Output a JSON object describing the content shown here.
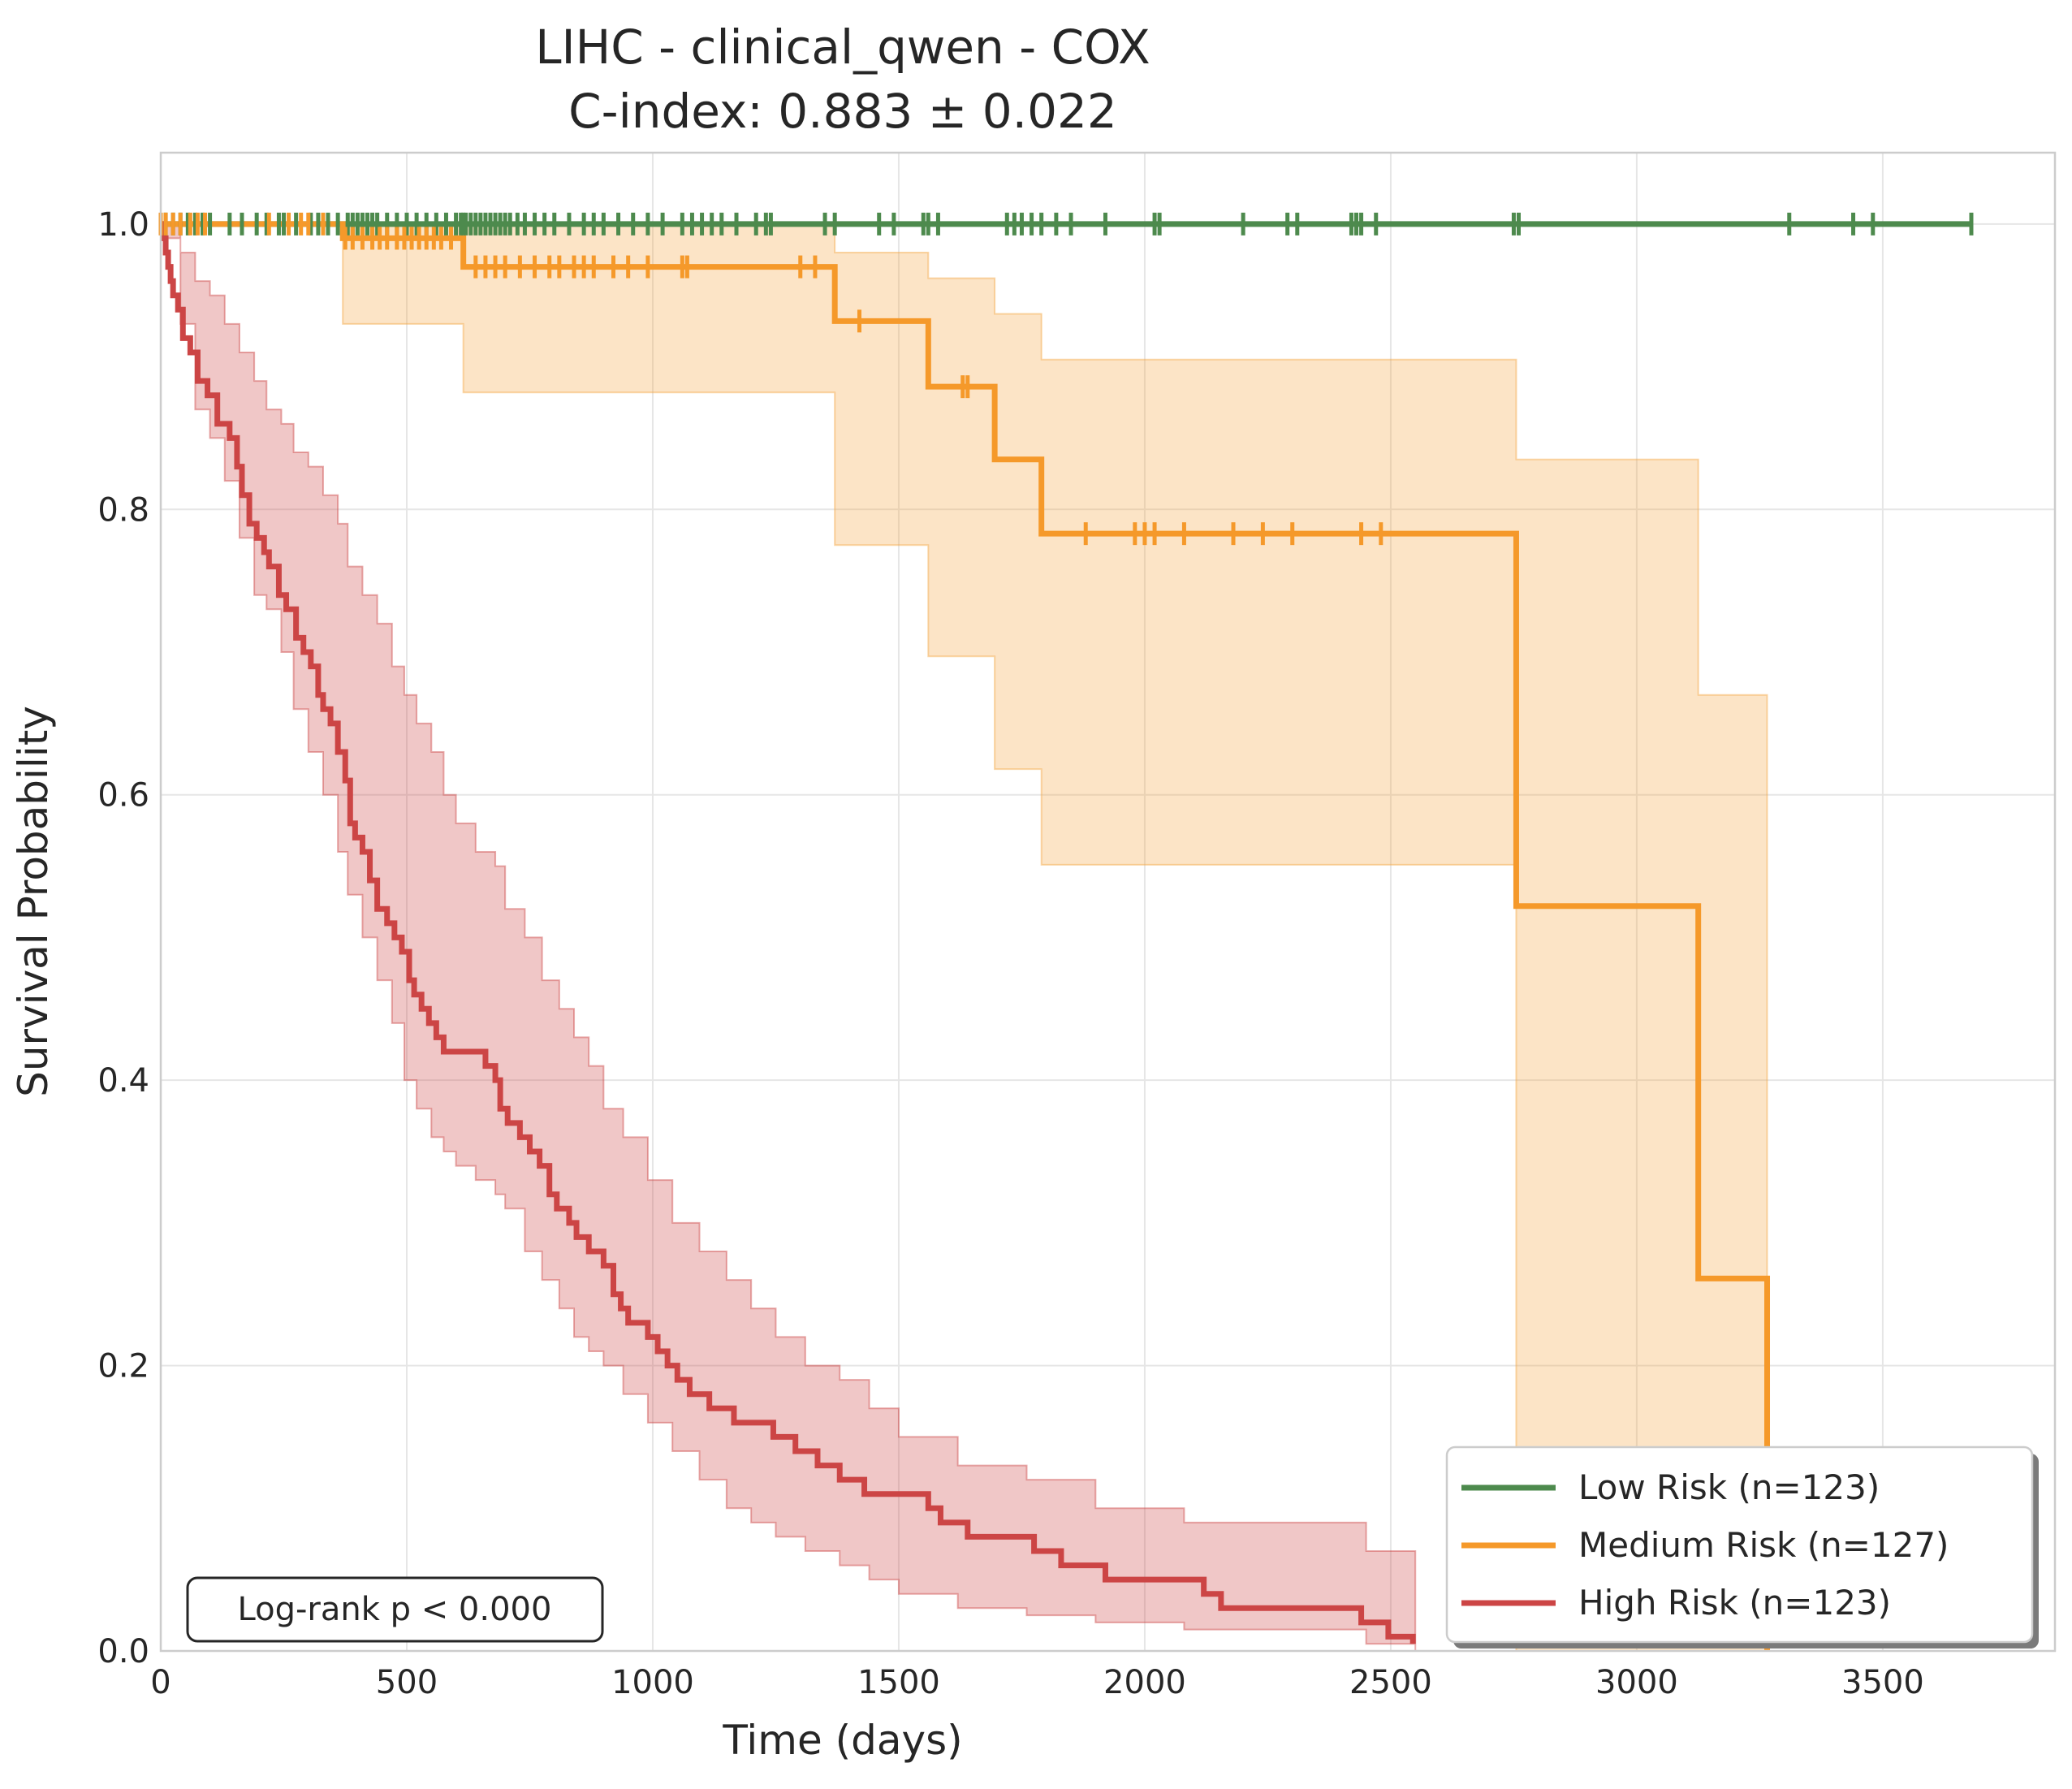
{
  "chart_data": {
    "type": "line",
    "title": "LIHC - clinical_qwen - COX",
    "subtitle": "C-index: 0.883 ± 0.022",
    "xlabel": "Time (days)",
    "ylabel": "Survival Probability",
    "xlim": [
      0,
      3850
    ],
    "ylim": [
      0,
      1.05
    ],
    "xticks": [
      0,
      500,
      1000,
      1500,
      2000,
      2500,
      3000,
      3500
    ],
    "xtick_labels": [
      "0",
      "500",
      "1000",
      "1500",
      "2000",
      "2500",
      "3000",
      "3500"
    ],
    "yticks": [
      0.0,
      0.2,
      0.4,
      0.6,
      0.8,
      1.0
    ],
    "ytick_labels": [
      "0.0",
      "0.2",
      "0.4",
      "0.6",
      "0.8",
      "1.0"
    ],
    "grid": true,
    "legend_position": "lower-right",
    "annotation": "Log-rank p < 0.000",
    "series": [
      {
        "name": "Low Risk (n=123)",
        "color": "#4d8a4d",
        "fill_color": "#4d8a4d",
        "steps": [
          [
            0,
            1.0
          ],
          [
            3680,
            1.0
          ]
        ],
        "ci_upper": [],
        "ci_lower": [],
        "censor": [
          10,
          25,
          40,
          55,
          70,
          85,
          100,
          140,
          165,
          195,
          215,
          240,
          250,
          275,
          305,
          320,
          340,
          360,
          380,
          390,
          400,
          410,
          420,
          430,
          440,
          460,
          480,
          500,
          520,
          540,
          560,
          580,
          600,
          610,
          615,
          620,
          630,
          640,
          650,
          660,
          670,
          680,
          690,
          700,
          710,
          725,
          740,
          760,
          780,
          800,
          830,
          860,
          880,
          900,
          930,
          960,
          990,
          1020,
          1060,
          1080,
          1100,
          1120,
          1140,
          1170,
          1210,
          1230,
          1240,
          1350,
          1370,
          1460,
          1490,
          1550,
          1560,
          1580,
          1720,
          1735,
          1750,
          1770,
          1790,
          1820,
          1850,
          1920,
          2020,
          2030,
          2200,
          2290,
          2310,
          2420,
          2430,
          2440,
          2470,
          2750,
          2760,
          3310,
          3440,
          3480,
          3680
        ]
      },
      {
        "name": "Medium Risk (n=127)",
        "color": "#f5992a",
        "fill_color": "#f5a742",
        "steps": [
          [
            0,
            1.0
          ],
          [
            370,
            1.0
          ],
          [
            370,
            0.99
          ],
          [
            615,
            0.99
          ],
          [
            615,
            0.97
          ],
          [
            1370,
            0.97
          ],
          [
            1370,
            0.932
          ],
          [
            1560,
            0.932
          ],
          [
            1560,
            0.886
          ],
          [
            1695,
            0.886
          ],
          [
            1695,
            0.835
          ],
          [
            1790,
            0.835
          ],
          [
            1790,
            0.783
          ],
          [
            2755,
            0.783
          ],
          [
            2755,
            0.522
          ],
          [
            3125,
            0.522
          ],
          [
            3125,
            0.261
          ],
          [
            3265,
            0.261
          ],
          [
            3265,
            0.0
          ]
        ],
        "ci_upper": [
          [
            370,
            1.0
          ],
          [
            615,
            1.0
          ],
          [
            1370,
            1.0
          ],
          [
            1370,
            0.98
          ],
          [
            1560,
            0.98
          ],
          [
            1560,
            0.962
          ],
          [
            1695,
            0.962
          ],
          [
            1695,
            0.937
          ],
          [
            1790,
            0.937
          ],
          [
            1790,
            0.905
          ],
          [
            2755,
            0.905
          ],
          [
            2755,
            0.835
          ],
          [
            3125,
            0.835
          ],
          [
            3125,
            0.67
          ],
          [
            3265,
            0.67
          ]
        ],
        "ci_lower": [
          [
            370,
            0.93
          ],
          [
            615,
            0.93
          ],
          [
            615,
            0.882
          ],
          [
            1370,
            0.882
          ],
          [
            1370,
            0.775
          ],
          [
            1560,
            0.775
          ],
          [
            1560,
            0.697
          ],
          [
            1695,
            0.697
          ],
          [
            1695,
            0.618
          ],
          [
            1790,
            0.618
          ],
          [
            1790,
            0.551
          ],
          [
            2755,
            0.551
          ],
          [
            2755,
            0.0
          ],
          [
            3265,
            0.0
          ]
        ],
        "censor": [
          0,
          10,
          25,
          40,
          60,
          75,
          90,
          220,
          260,
          285,
          300,
          330,
          375,
          390,
          410,
          430,
          445,
          460,
          480,
          495,
          510,
          525,
          540,
          555,
          570,
          590,
          640,
          660,
          680,
          700,
          730,
          760,
          790,
          810,
          840,
          860,
          880,
          920,
          950,
          990,
          1060,
          1070,
          1300,
          1330,
          1420,
          1630,
          1640,
          1880,
          1980,
          2000,
          2020,
          2080,
          2180,
          2240,
          2300,
          2440,
          2480
        ]
      },
      {
        "name": "High Risk (n=123)",
        "color": "#cc4545",
        "fill_color": "#cc4545",
        "steps": [
          [
            0,
            1.0
          ],
          [
            5,
            0.99
          ],
          [
            10,
            0.98
          ],
          [
            15,
            0.97
          ],
          [
            20,
            0.96
          ],
          [
            25,
            0.95
          ],
          [
            35,
            0.94
          ],
          [
            45,
            0.92
          ],
          [
            60,
            0.91
          ],
          [
            75,
            0.89
          ],
          [
            95,
            0.88
          ],
          [
            115,
            0.86
          ],
          [
            140,
            0.85
          ],
          [
            155,
            0.83
          ],
          [
            165,
            0.81
          ],
          [
            180,
            0.79
          ],
          [
            195,
            0.78
          ],
          [
            210,
            0.77
          ],
          [
            220,
            0.76
          ],
          [
            240,
            0.74
          ],
          [
            255,
            0.73
          ],
          [
            275,
            0.71
          ],
          [
            290,
            0.7
          ],
          [
            305,
            0.69
          ],
          [
            320,
            0.67
          ],
          [
            330,
            0.66
          ],
          [
            345,
            0.65
          ],
          [
            360,
            0.63
          ],
          [
            375,
            0.61
          ],
          [
            385,
            0.58
          ],
          [
            395,
            0.57
          ],
          [
            410,
            0.56
          ],
          [
            425,
            0.54
          ],
          [
            440,
            0.52
          ],
          [
            460,
            0.51
          ],
          [
            475,
            0.5
          ],
          [
            490,
            0.49
          ],
          [
            505,
            0.47
          ],
          [
            515,
            0.46
          ],
          [
            530,
            0.45
          ],
          [
            545,
            0.44
          ],
          [
            560,
            0.43
          ],
          [
            575,
            0.42
          ],
          [
            660,
            0.41
          ],
          [
            680,
            0.4
          ],
          [
            690,
            0.38
          ],
          [
            705,
            0.37
          ],
          [
            730,
            0.36
          ],
          [
            750,
            0.35
          ],
          [
            770,
            0.34
          ],
          [
            790,
            0.32
          ],
          [
            805,
            0.31
          ],
          [
            830,
            0.3
          ],
          [
            845,
            0.29
          ],
          [
            870,
            0.28
          ],
          [
            900,
            0.27
          ],
          [
            920,
            0.25
          ],
          [
            935,
            0.24
          ],
          [
            950,
            0.23
          ],
          [
            990,
            0.22
          ],
          [
            1010,
            0.21
          ],
          [
            1030,
            0.2
          ],
          [
            1050,
            0.19
          ],
          [
            1075,
            0.18
          ],
          [
            1115,
            0.17
          ],
          [
            1165,
            0.16
          ],
          [
            1245,
            0.15
          ],
          [
            1290,
            0.14
          ],
          [
            1335,
            0.13
          ],
          [
            1380,
            0.12
          ],
          [
            1430,
            0.11
          ],
          [
            1560,
            0.1
          ],
          [
            1585,
            0.09
          ],
          [
            1640,
            0.08
          ],
          [
            1775,
            0.07
          ],
          [
            1830,
            0.06
          ],
          [
            1920,
            0.05
          ],
          [
            2120,
            0.04
          ],
          [
            2155,
            0.03
          ],
          [
            2440,
            0.02
          ],
          [
            2495,
            0.01
          ],
          [
            2545,
            0.005
          ]
        ],
        "ci_upper": [
          [
            0,
            1.0
          ],
          [
            40,
            0.98
          ],
          [
            70,
            0.96
          ],
          [
            100,
            0.95
          ],
          [
            130,
            0.93
          ],
          [
            160,
            0.91
          ],
          [
            190,
            0.89
          ],
          [
            215,
            0.87
          ],
          [
            245,
            0.86
          ],
          [
            270,
            0.84
          ],
          [
            300,
            0.83
          ],
          [
            330,
            0.81
          ],
          [
            360,
            0.79
          ],
          [
            380,
            0.76
          ],
          [
            410,
            0.74
          ],
          [
            440,
            0.72
          ],
          [
            470,
            0.69
          ],
          [
            495,
            0.67
          ],
          [
            520,
            0.65
          ],
          [
            550,
            0.63
          ],
          [
            575,
            0.6
          ],
          [
            600,
            0.58
          ],
          [
            640,
            0.56
          ],
          [
            680,
            0.55
          ],
          [
            700,
            0.52
          ],
          [
            740,
            0.5
          ],
          [
            775,
            0.47
          ],
          [
            810,
            0.45
          ],
          [
            840,
            0.43
          ],
          [
            870,
            0.41
          ],
          [
            900,
            0.38
          ],
          [
            940,
            0.36
          ],
          [
            990,
            0.33
          ],
          [
            1040,
            0.3
          ],
          [
            1095,
            0.28
          ],
          [
            1150,
            0.26
          ],
          [
            1200,
            0.24
          ],
          [
            1250,
            0.22
          ],
          [
            1310,
            0.2
          ],
          [
            1380,
            0.19
          ],
          [
            1440,
            0.17
          ],
          [
            1500,
            0.15
          ],
          [
            1620,
            0.13
          ],
          [
            1760,
            0.12
          ],
          [
            1900,
            0.1
          ],
          [
            2080,
            0.09
          ],
          [
            2450,
            0.07
          ],
          [
            2550,
            0.05
          ]
        ],
        "ci_lower": [
          [
            0,
            0.99
          ],
          [
            40,
            0.93
          ],
          [
            70,
            0.87
          ],
          [
            100,
            0.85
          ],
          [
            130,
            0.82
          ],
          [
            160,
            0.78
          ],
          [
            190,
            0.74
          ],
          [
            215,
            0.73
          ],
          [
            245,
            0.7
          ],
          [
            270,
            0.66
          ],
          [
            300,
            0.63
          ],
          [
            330,
            0.6
          ],
          [
            360,
            0.56
          ],
          [
            380,
            0.53
          ],
          [
            410,
            0.5
          ],
          [
            440,
            0.47
          ],
          [
            470,
            0.44
          ],
          [
            495,
            0.4
          ],
          [
            520,
            0.38
          ],
          [
            550,
            0.36
          ],
          [
            575,
            0.35
          ],
          [
            600,
            0.34
          ],
          [
            640,
            0.33
          ],
          [
            680,
            0.32
          ],
          [
            700,
            0.31
          ],
          [
            740,
            0.28
          ],
          [
            775,
            0.26
          ],
          [
            810,
            0.24
          ],
          [
            840,
            0.22
          ],
          [
            870,
            0.21
          ],
          [
            900,
            0.2
          ],
          [
            940,
            0.18
          ],
          [
            990,
            0.16
          ],
          [
            1040,
            0.14
          ],
          [
            1095,
            0.12
          ],
          [
            1150,
            0.1
          ],
          [
            1200,
            0.09
          ],
          [
            1250,
            0.08
          ],
          [
            1310,
            0.07
          ],
          [
            1380,
            0.06
          ],
          [
            1440,
            0.05
          ],
          [
            1500,
            0.04
          ],
          [
            1620,
            0.03
          ],
          [
            1760,
            0.025
          ],
          [
            1900,
            0.02
          ],
          [
            2080,
            0.015
          ],
          [
            2450,
            0.005
          ],
          [
            2550,
            0.0
          ]
        ],
        "censor": []
      }
    ]
  }
}
